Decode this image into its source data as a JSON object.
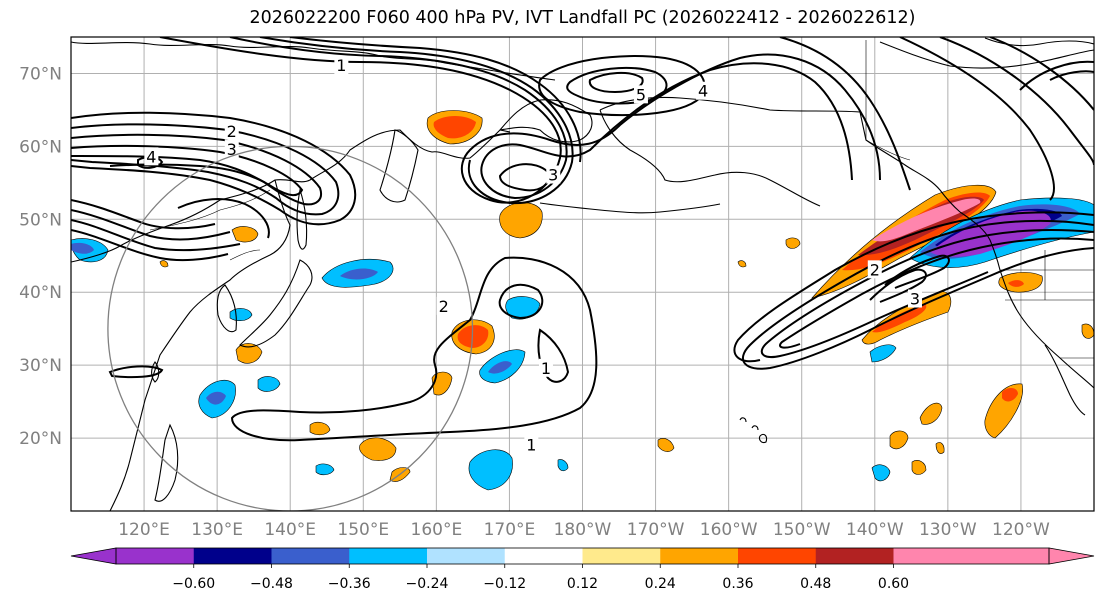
{
  "title": "2026022200 F060 400 hPa PV, IVT Landfall PC (2026022412 - 2026022612)",
  "map": {
    "projection": "PlateCarree (Pacific centered)",
    "extent_lon": [
      110,
      250
    ],
    "extent_lat": [
      10,
      75
    ],
    "lat_ticks": [
      {
        "value": 20,
        "label": "20°N"
      },
      {
        "value": 30,
        "label": "30°N"
      },
      {
        "value": 40,
        "label": "40°N"
      },
      {
        "value": 50,
        "label": "50°N"
      },
      {
        "value": 60,
        "label": "60°N"
      },
      {
        "value": 70,
        "label": "70°N"
      }
    ],
    "lon_ticks": [
      {
        "value": 120,
        "label": "120°E"
      },
      {
        "value": 130,
        "label": "130°E"
      },
      {
        "value": 140,
        "label": "140°E"
      },
      {
        "value": 150,
        "label": "150°E"
      },
      {
        "value": 160,
        "label": "160°E"
      },
      {
        "value": 170,
        "label": "170°E"
      },
      {
        "value": 180,
        "label": "180°W"
      },
      {
        "value": 190,
        "label": "170°W"
      },
      {
        "value": 200,
        "label": "160°W"
      },
      {
        "value": 210,
        "label": "150°W"
      },
      {
        "value": 220,
        "label": "140°W"
      },
      {
        "value": 230,
        "label": "130°W"
      },
      {
        "value": 240,
        "label": "120°W"
      }
    ],
    "pv_contour_labels": [
      {
        "text": "1",
        "lon": 147,
        "lat": 71
      },
      {
        "text": "1",
        "lon": 175,
        "lat": 29.5
      },
      {
        "text": "1",
        "lon": 173,
        "lat": 19
      },
      {
        "text": "2",
        "lon": 132,
        "lat": 62
      },
      {
        "text": "3",
        "lon": 132,
        "lat": 59.5
      },
      {
        "text": "4",
        "lon": 121,
        "lat": 58.5
      },
      {
        "text": "5",
        "lon": 188,
        "lat": 67
      },
      {
        "text": "4",
        "lon": 196.5,
        "lat": 67.5
      },
      {
        "text": "3",
        "lon": 176,
        "lat": 56
      },
      {
        "text": "2",
        "lon": 161,
        "lat": 38
      },
      {
        "text": "2",
        "lon": 220,
        "lat": 43
      },
      {
        "text": "3",
        "lon": 225.5,
        "lat": 39
      }
    ],
    "radius_circle": {
      "center_lon": 140,
      "center_lat": 35,
      "radius_deg": 25
    }
  },
  "colorbar": {
    "ticks": [
      "−0.60",
      "−0.48",
      "−0.36",
      "−0.24",
      "−0.12",
      "0.12",
      "0.24",
      "0.36",
      "0.48",
      "0.60"
    ],
    "colors": [
      "#9932cc",
      "#00008b",
      "#3a5fcd",
      "#00bfff",
      "#b0e2ff",
      "#ffffff",
      "#ffea8c",
      "#ffa500",
      "#ff4500",
      "#b22222",
      "#ff85ad",
      "#ff85ad"
    ],
    "under_color": "#9932cc",
    "over_color": "#ff85ad"
  }
}
